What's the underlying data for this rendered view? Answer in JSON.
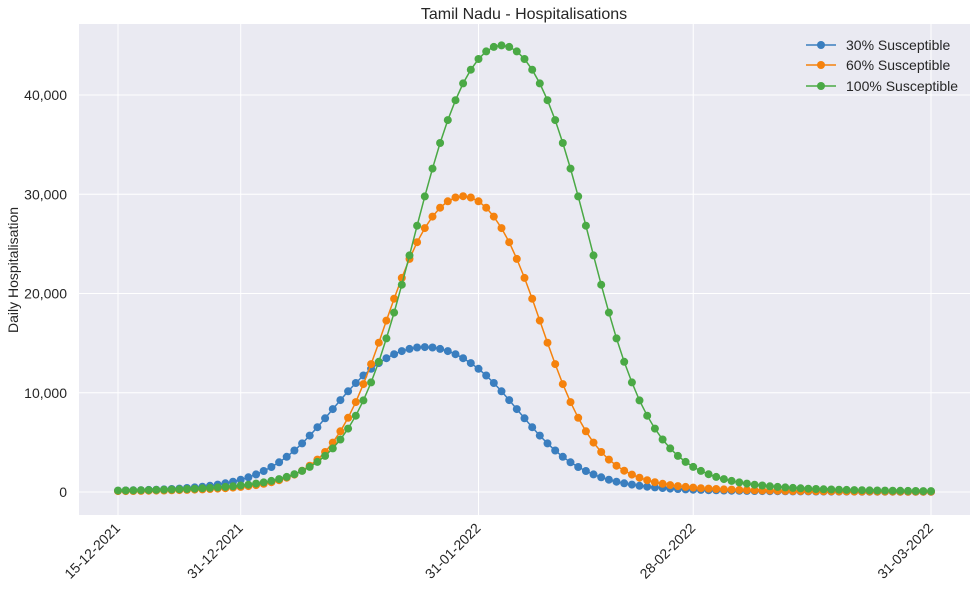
{
  "chart_data": {
    "type": "line",
    "title": "Tamil Nadu - Hospitalisations",
    "xlabel": "",
    "ylabel": "Daily Hospitalisation",
    "x_start": "15-12-2021",
    "x_end": "31-03-2022",
    "x_ticks": [
      "15-12-2021",
      "31-12-2021",
      "31-01-2022",
      "28-02-2022",
      "31-03-2022"
    ],
    "y_ticks": [
      "0",
      "10,000",
      "20,000",
      "30,000",
      "40,000"
    ],
    "y_tick_values": [
      0,
      10000,
      20000,
      30000,
      40000
    ],
    "ylim": [
      -2300,
      47200
    ],
    "grid": true,
    "legend_position": "top-right",
    "series": [
      {
        "name": "30% Susceptible",
        "color": "#3a7ebf",
        "peak_date": "24-01-2022",
        "peak_value": 14600,
        "values_approx_gaussian_width_days": 9.5
      },
      {
        "name": "60% Susceptible",
        "color": "#f5820d",
        "peak_date": "29-01-2022",
        "peak_value": 29800,
        "values_approx_gaussian_width_days": 8
      },
      {
        "name": "100% Susceptible",
        "color": "#4aa945",
        "peak_date": "03-02-2022",
        "peak_value": 45000,
        "values_approx_gaussian_width_days": 9
      }
    ]
  }
}
